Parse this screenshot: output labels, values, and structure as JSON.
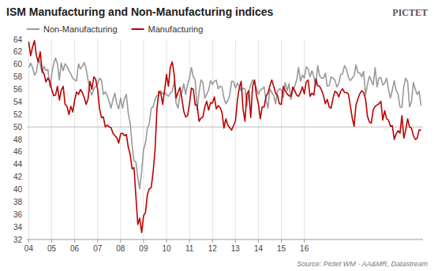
{
  "chart_data": {
    "type": "line",
    "title": "ISM Manufacturing and Non-Manufacturing indices",
    "source": "Source: Pictet WM - AA&MR, Datastream",
    "annotations": [
      "PICTET"
    ],
    "categories": [
      "04",
      null,
      null,
      null,
      null,
      null,
      null,
      null,
      null,
      null,
      null,
      null,
      "05",
      null,
      null,
      null,
      null,
      null,
      null,
      null,
      null,
      null,
      null,
      null,
      "06",
      null,
      null,
      null,
      null,
      null,
      null,
      null,
      null,
      null,
      null,
      null,
      "07",
      null,
      null,
      null,
      null,
      null,
      null,
      null,
      null,
      null,
      null,
      null,
      "08",
      null,
      null,
      null,
      null,
      null,
      null,
      null,
      null,
      null,
      null,
      null,
      "09",
      null,
      null,
      null,
      null,
      null,
      null,
      null,
      null,
      null,
      null,
      null,
      "10",
      null,
      null,
      null,
      null,
      null,
      null,
      null,
      null,
      null,
      null,
      null,
      "11",
      null,
      null,
      null,
      null,
      null,
      null,
      null,
      null,
      null,
      null,
      null,
      "12",
      null,
      null,
      null,
      null,
      null,
      null,
      null,
      null,
      null,
      null,
      null,
      "13",
      null,
      null,
      null,
      null,
      null,
      null,
      null,
      null,
      null,
      null,
      null,
      "14",
      null,
      null,
      null,
      null,
      null,
      null,
      null,
      null,
      null,
      null,
      null,
      "15",
      null,
      null,
      null,
      null,
      null,
      null,
      null,
      null,
      null,
      null,
      null,
      "16",
      null,
      null,
      null,
      null,
      null,
      null,
      null,
      null,
      null,
      null,
      null,
      null,
      null,
      null,
      null,
      null,
      null,
      null,
      null,
      null,
      null,
      null,
      null,
      null,
      null,
      null,
      null,
      null,
      null,
      null,
      null,
      null,
      null,
      null,
      null,
      null,
      null,
      null,
      null,
      null,
      null,
      null,
      null,
      null,
      null,
      null,
      null,
      null,
      null,
      null,
      null,
      null,
      null,
      null,
      null,
      null,
      null,
      null,
      null,
      null,
      null
    ],
    "series": [
      {
        "name": "Non-Manufacturing",
        "color": "#999999",
        "values": [
          59.5,
          60.2,
          59.5,
          58.3,
          58.7,
          61.0,
          60.0,
          58.6,
          59.7,
          59.0,
          59.2,
          56.4,
          58.4,
          60.1,
          61.0,
          60.1,
          57.5,
          60.2,
          59.0,
          60.1,
          59.7,
          59.0,
          58.5,
          57.8,
          57.5,
          57.4,
          60.1,
          59.3,
          59.7,
          60.3,
          59.3,
          57.5,
          55.8,
          55.1,
          56.1,
          56.5,
          56.8,
          57.8,
          57.5,
          55.2,
          55.6,
          55.0,
          54.1,
          53.0,
          54.4,
          55.4,
          53.7,
          52.9,
          54.6,
          53.0,
          54.5,
          55.2,
          52.2,
          50.6,
          47.1,
          44.6,
          44.4,
          41.9,
          40.1,
          42.9,
          46.4,
          47.4,
          49.8,
          50.5,
          53.0,
          53.2,
          54.4,
          55.0,
          55.1,
          55.8,
          55.3,
          55.5,
          55.2,
          54.9,
          55.4,
          55.7,
          57.3,
          53.8,
          53.0,
          55.1,
          55.4,
          56.9,
          55.2,
          56.8,
          57.8,
          59.5,
          58.0,
          57.5,
          52.7,
          55.6,
          57.5,
          57.1,
          54.6,
          55.2,
          55.9,
          57.4,
          56.8,
          57.3,
          57.5,
          56.1,
          56.5,
          56.4,
          54.6,
          53.7,
          54.2,
          55.0,
          57.3,
          57.3,
          56.2,
          57.0,
          56.5,
          55.8,
          56.2,
          56.1,
          53.4,
          55.7,
          56.8,
          57.5,
          57.1,
          56.2,
          55.2,
          55.9,
          56.1,
          56.4,
          54.3,
          53.0,
          56.1,
          55.5,
          55.0,
          53.7,
          55.8,
          56.1,
          55.9,
          54.7,
          57.1,
          55.8,
          56.9,
          54.4,
          55.7,
          56.5,
          57.5,
          59.5,
          57.3,
          58.3,
          57.8,
          59.6,
          59.3,
          58.0,
          59.0,
          58.0,
          56.5,
          59.8,
          58.2,
          57.8,
          57.8,
          58.6,
          56.5,
          56.6,
          58.0,
          57.8,
          57.5,
          56.4,
          56.9,
          58.4,
          58.5,
          59.8,
          59.3,
          58.0,
          57.4,
          57.8,
          58.2,
          59.9,
          58.7,
          58.6,
          58.0,
          58.9,
          55.1,
          56.8,
          58.1,
          57.4,
          56.7,
          59.5,
          56.4,
          57.8,
          57.9,
          56.7,
          57.0,
          57.8,
          56.0,
          54.6,
          55.9,
          57.4,
          55.8,
          55.3,
          53.2,
          53.1,
          56.5,
          57.8,
          57.2,
          53.2,
          54.0,
          57.1,
          56.0,
          55.2,
          55.7,
          53.4
        ]
      },
      {
        "name": "Manufacturing",
        "color": "#bb0000",
        "values": [
          63.6,
          61.4,
          62.8,
          63.8,
          61.4,
          60.4,
          62.0,
          59.0,
          58.5,
          57.2,
          57.8,
          57.3,
          56.0,
          55.0,
          55.1,
          56.5,
          54.3,
          55.9,
          56.5,
          53.6,
          53.3,
          52.0,
          53.3,
          52.4,
          54.3,
          55.6,
          55.2,
          56.0,
          55.5,
          54.7,
          53.6,
          54.5,
          57.3,
          56.0,
          58.0,
          57.6,
          56.0,
          52.9,
          51.5,
          51.6,
          50.0,
          50.3,
          50.0,
          49.9,
          49.0,
          48.6,
          48.3,
          47.4,
          48.9,
          49.0,
          48.6,
          48.8,
          46.8,
          45.6,
          43.3,
          43.5,
          38.9,
          34.4,
          35.4,
          33.1,
          35.8,
          36.3,
          39.2,
          40.1,
          40.3,
          42.8,
          46.3,
          52.9,
          55.7,
          55.4,
          53.6,
          55.9,
          58.4,
          56.5,
          59.6,
          60.4,
          58.4,
          54.6,
          55.5,
          56.3,
          54.6,
          52.5,
          51.6,
          51.8,
          53.7,
          56.2,
          56.0,
          53.5,
          53.5,
          50.9,
          51.4,
          51.6,
          53.2,
          54.1,
          52.7,
          53.9,
          53.8,
          54.8,
          52.9,
          53.4,
          53.1,
          52.3,
          49.8,
          51.3,
          50.3,
          49.9,
          49.5,
          50.2,
          50.9,
          54.2,
          56.2,
          57.3,
          52.8,
          50.9,
          55.3,
          55.8,
          51.5,
          56.5,
          57.5,
          55.0,
          53.7,
          51.3,
          53.2,
          53.2,
          54.9,
          55.4,
          56.6,
          57.5,
          56.5,
          55.4,
          55.0,
          53.7,
          53.6,
          56.5,
          55.8,
          55.3,
          55.0,
          54.9,
          56.4,
          55.8,
          55.1,
          54.9,
          55.5,
          56.4,
          55.3,
          57.2,
          57.5,
          54.9,
          55.4,
          55.1,
          57.7,
          56.6,
          56.5,
          55.9,
          55.0,
          53.7,
          54.4,
          53.2,
          53.0,
          54.6,
          55.7,
          55.5,
          54.8,
          55.7,
          56.1,
          55.5,
          55.5,
          55.3,
          53.5,
          51.5,
          50.1,
          53.5,
          54.5,
          55.3,
          55.8,
          55.5,
          54.5,
          51.7,
          50.8,
          50.6,
          52.7,
          53.3,
          53.5,
          53.7,
          54.1,
          51.1,
          52.6,
          51.3,
          51.1,
          50.1,
          50.2,
          48.0,
          48.9,
          49.4,
          49.0,
          51.8,
          48.2,
          49.5,
          51.3,
          50.0,
          49.8,
          48.6,
          48.0,
          48.2,
          49.5,
          49.5
        ]
      }
    ],
    "reference_line": 50,
    "ylim": [
      32,
      64
    ],
    "yticks": [
      32,
      34,
      36,
      38,
      40,
      42,
      44,
      46,
      48,
      50,
      52,
      54,
      56,
      58,
      60,
      62,
      64
    ],
    "grid": "x",
    "legend": "top"
  }
}
